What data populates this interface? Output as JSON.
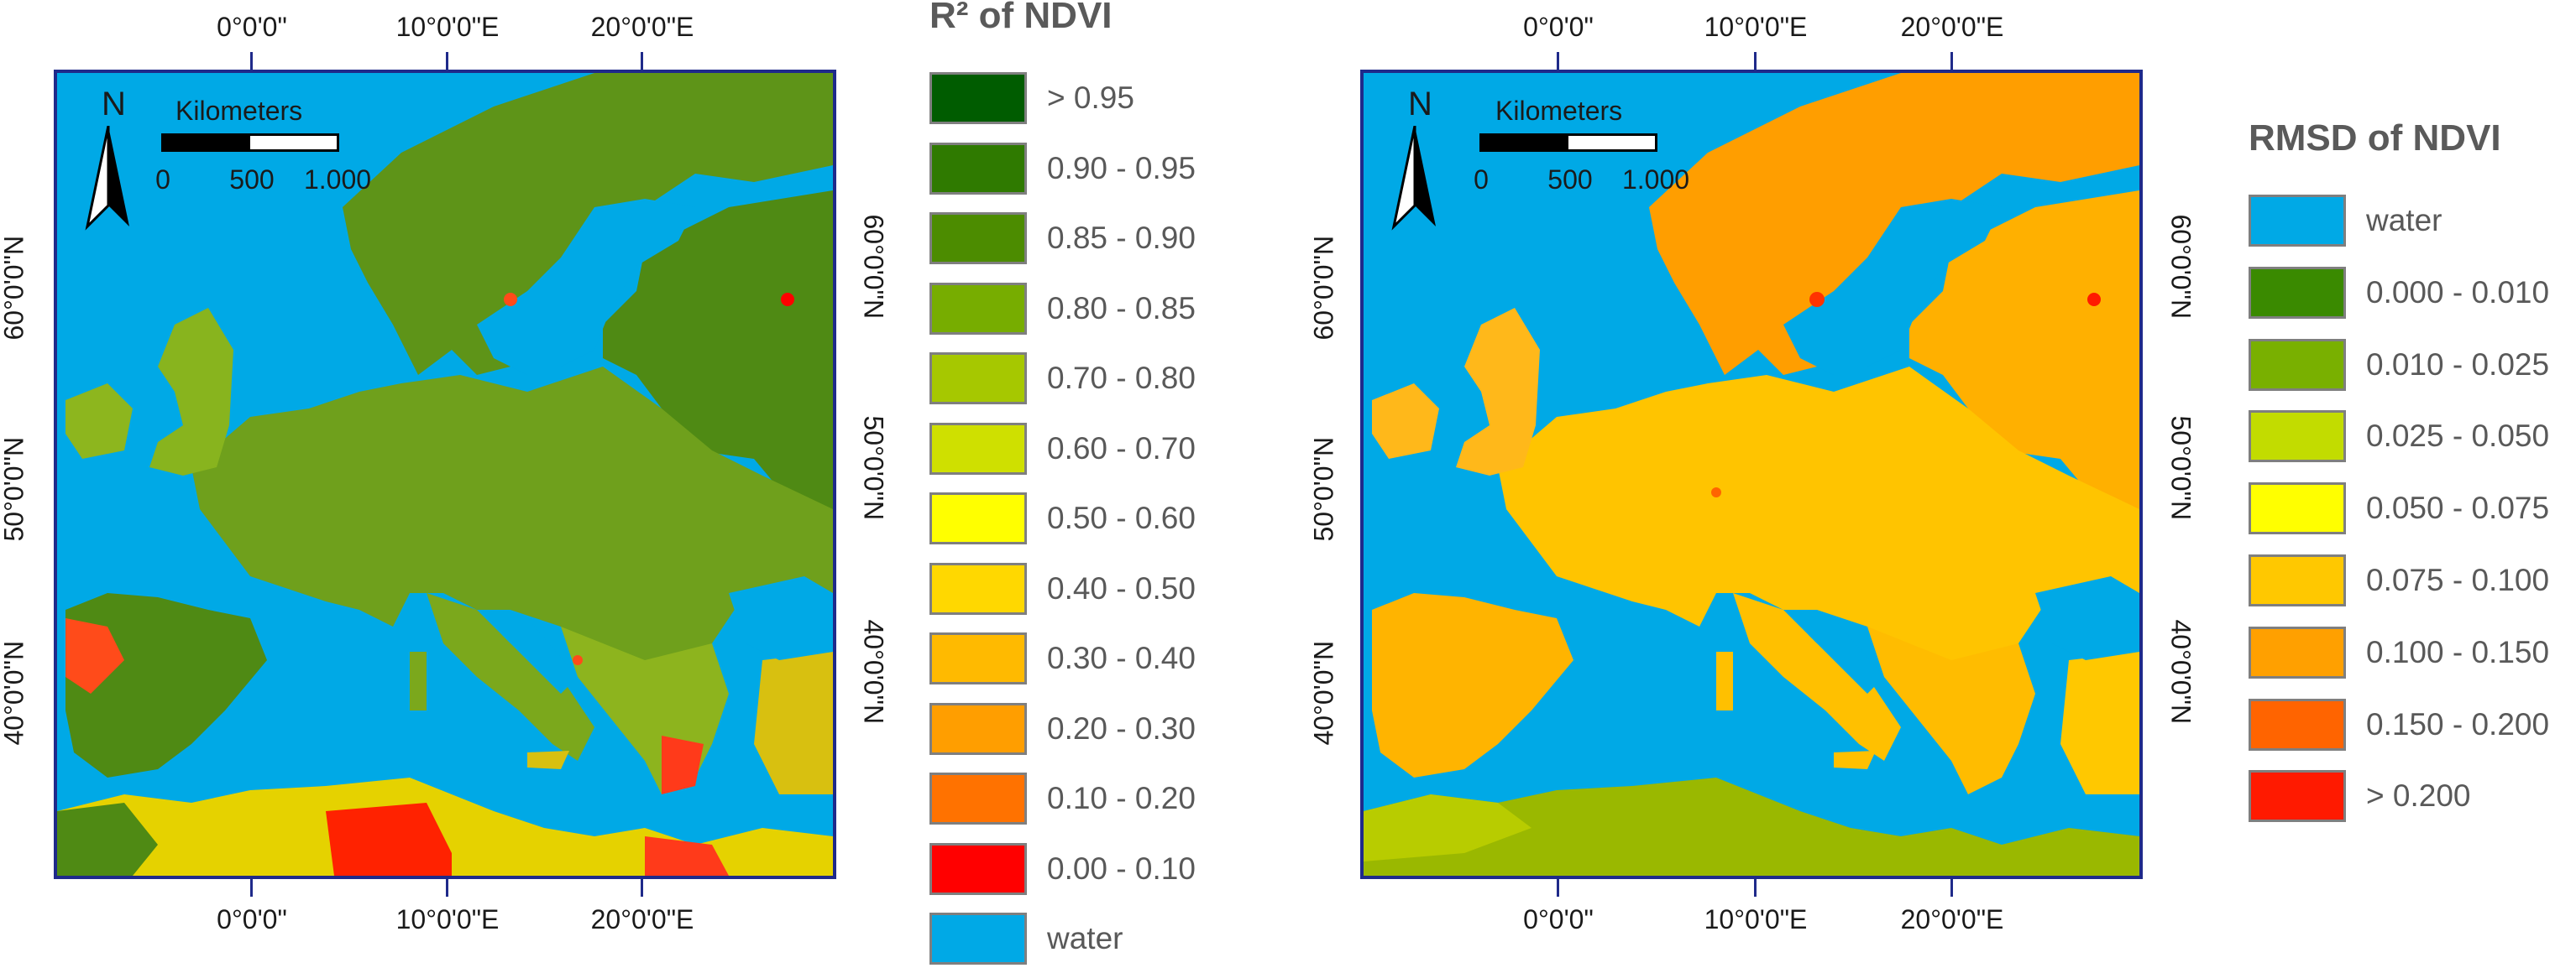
{
  "left_map": {
    "legend_title": "R² of NDVI",
    "legend": [
      {
        "label": "> 0.95",
        "color": "#005c00"
      },
      {
        "label": "0.90 - 0.95",
        "color": "#2f7a00"
      },
      {
        "label": "0.85 - 0.90",
        "color": "#4c8c00"
      },
      {
        "label": "0.80 - 0.85",
        "color": "#77ad00"
      },
      {
        "label": "0.70 - 0.80",
        "color": "#a6c800"
      },
      {
        "label": "0.60 - 0.70",
        "color": "#cfe000"
      },
      {
        "label": "0.50 - 0.60",
        "color": "#ffff00"
      },
      {
        "label": "0.40 - 0.50",
        "color": "#ffd800"
      },
      {
        "label": "0.30 - 0.40",
        "color": "#ffba00"
      },
      {
        "label": "0.20 - 0.30",
        "color": "#ff9e00"
      },
      {
        "label": "0.10 - 0.20",
        "color": "#ff7200"
      },
      {
        "label": "0.00 - 0.10",
        "color": "#ff0000"
      },
      {
        "label": "water",
        "color": "#00a9e6"
      }
    ],
    "land_color": "#6e9e18",
    "water_color": "#00a9e6",
    "hot_color": "#ff2200"
  },
  "right_map": {
    "legend_title": "RMSD of NDVI",
    "legend": [
      {
        "label": "water",
        "color": "#00a9e6"
      },
      {
        "label": "0.000 - 0.010",
        "color": "#3a8a00"
      },
      {
        "label": "0.010 - 0.025",
        "color": "#79b000"
      },
      {
        "label": "0.025 - 0.050",
        "color": "#c2dc00"
      },
      {
        "label": "0.050 - 0.075",
        "color": "#ffff00"
      },
      {
        "label": "0.075 - 0.100",
        "color": "#ffc800"
      },
      {
        "label": "0.100 - 0.150",
        "color": "#ffa000"
      },
      {
        "label": "0.150 - 0.200",
        "color": "#ff6400"
      },
      {
        "label": "> 0.200",
        "color": "#ff1a00"
      }
    ],
    "land_color": "#ffb21a",
    "water_color": "#00a9e6",
    "africa_color": "#9ab800"
  },
  "graticule": {
    "longitude_labels": [
      "0°0'0\"",
      "10°0'0\"E",
      "20°0'0\"E"
    ],
    "latitude_labels": [
      "60°0'0\"N",
      "50°0'0\"N",
      "40°0'0\"N"
    ]
  },
  "scalebar": {
    "title": "Kilometers",
    "labels": [
      "0",
      "500",
      "1.000"
    ]
  },
  "north_arrow": {
    "letter": "N"
  }
}
